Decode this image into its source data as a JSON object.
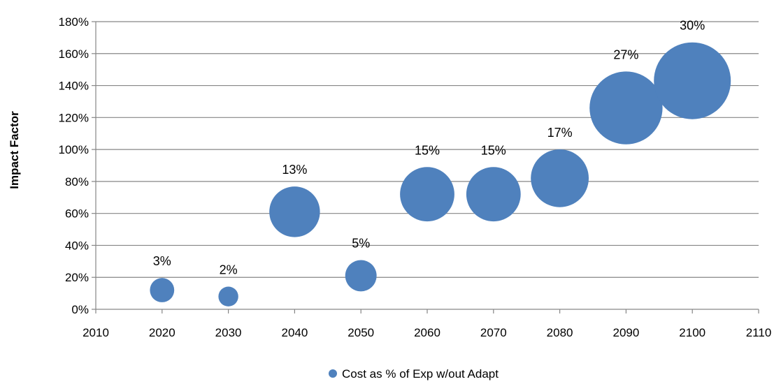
{
  "chart_data": {
    "type": "bubble",
    "ylabel": "Impact Factor",
    "xlim": [
      2010,
      2110
    ],
    "ylim": [
      0,
      1.8
    ],
    "x_ticks": [
      "2010",
      "2020",
      "2030",
      "2040",
      "2050",
      "2060",
      "2070",
      "2080",
      "2090",
      "2100",
      "2110"
    ],
    "y_ticks": [
      "0%",
      "20%",
      "40%",
      "60%",
      "80%",
      "100%",
      "120%",
      "140%",
      "160%",
      "180%"
    ],
    "grid": "horizontal",
    "legend_position": "bottom",
    "series": [
      {
        "name": "Cost as % of Exp w/out Adapt",
        "color": "#4f81bd",
        "x": [
          2020,
          2030,
          2040,
          2050,
          2060,
          2070,
          2080,
          2090,
          2100
        ],
        "y": [
          0.12,
          0.08,
          0.61,
          0.21,
          0.72,
          0.72,
          0.82,
          1.26,
          1.43
        ],
        "size": [
          0.03,
          0.02,
          0.13,
          0.05,
          0.15,
          0.15,
          0.17,
          0.27,
          0.3
        ],
        "labels": [
          "3%",
          "2%",
          "13%",
          "5%",
          "15%",
          "15%",
          "17%",
          "27%",
          "30%"
        ]
      }
    ]
  }
}
